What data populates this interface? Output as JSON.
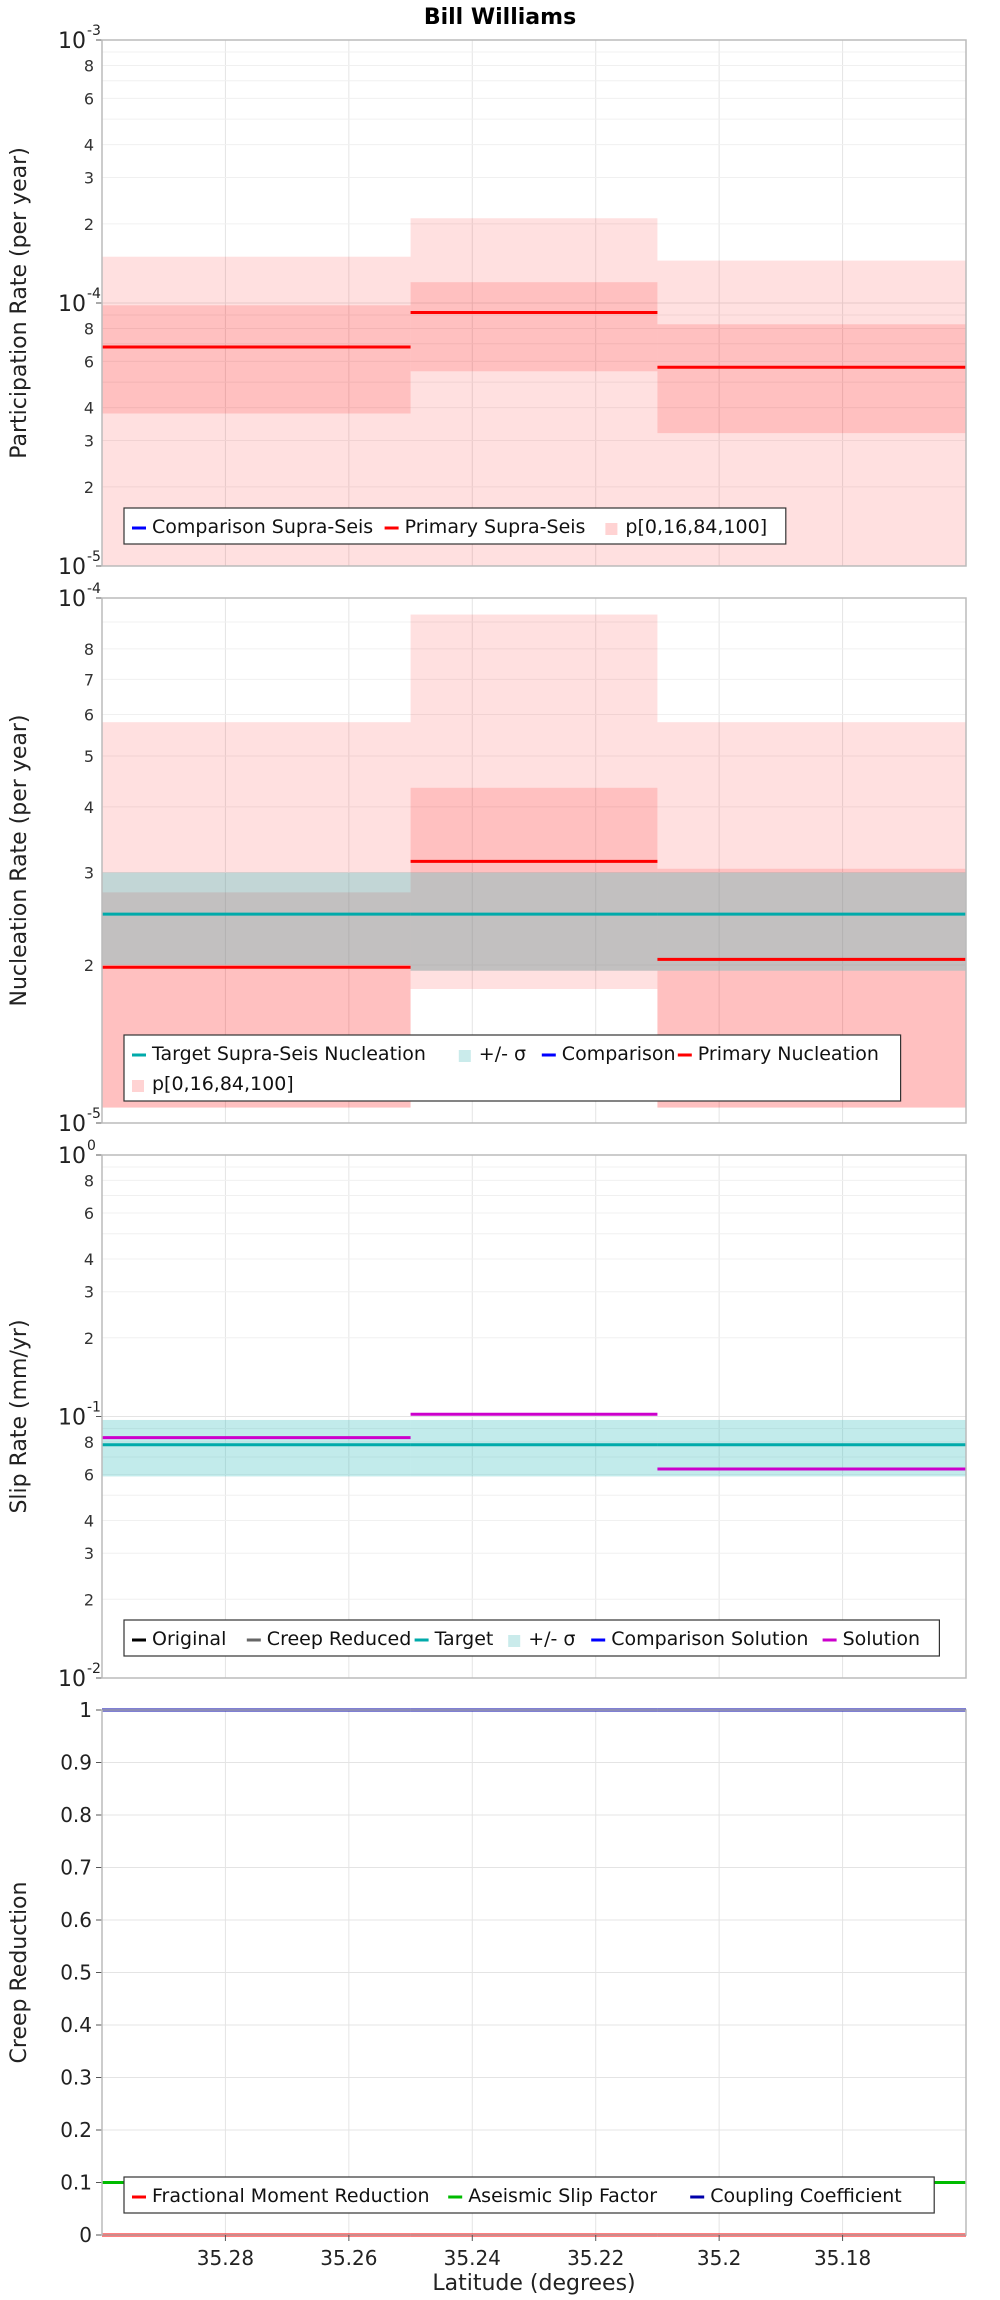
{
  "chart_data": [
    {
      "type": "line",
      "title": "Bill Williams",
      "xlabel": "",
      "ylabel": "Participation Rate (per year)",
      "yscale": "log",
      "ylim": [
        1e-05,
        0.001
      ],
      "xlim": [
        35.3,
        35.16
      ],
      "x_reversed": true,
      "grid": true,
      "x_bins": [
        [
          35.3,
          35.25
        ],
        [
          35.25,
          35.21
        ],
        [
          35.21,
          35.16
        ]
      ],
      "series": [
        {
          "name": "Comparison Supra-Seis",
          "color": "#0000ff",
          "values": []
        },
        {
          "name": "Primary Supra-Seis",
          "color": "#ff0000",
          "values": [
            6.8e-05,
            9.2e-05,
            5.7e-05
          ]
        },
        {
          "name": "p[0,16,84,100]",
          "color": "#ffc8c8",
          "p0": [
            1e-05,
            1e-05,
            1e-05
          ],
          "p16": [
            3.8e-05,
            5.5e-05,
            3.2e-05
          ],
          "p84": [
            9.8e-05,
            0.00012,
            8.3e-05
          ],
          "p100": [
            0.00015,
            0.00021,
            0.000145
          ]
        }
      ],
      "legend": [
        "Comparison Supra-Seis",
        "Primary Supra-Seis",
        "p[0,16,84,100]"
      ],
      "legend_position": "bottom-left"
    },
    {
      "type": "line",
      "title": "",
      "xlabel": "",
      "ylabel": "Nucleation Rate (per year)",
      "yscale": "log",
      "ylim": [
        1e-05,
        0.0001
      ],
      "xlim": [
        35.3,
        35.16
      ],
      "x_reversed": true,
      "grid": true,
      "x_bins": [
        [
          35.3,
          35.25
        ],
        [
          35.25,
          35.21
        ],
        [
          35.21,
          35.16
        ]
      ],
      "series": [
        {
          "name": "Target Supra-Seis Nucleation",
          "color": "#00aaaa",
          "values": [
            2.5e-05,
            2.5e-05,
            2.5e-05
          ]
        },
        {
          "name": "+/- σ",
          "color": "#bde6e6",
          "lower": [
            2e-05,
            1.95e-05,
            1.95e-05
          ],
          "upper": [
            3e-05,
            3e-05,
            3e-05
          ]
        },
        {
          "name": "Comparison",
          "color": "#0000ff",
          "values": []
        },
        {
          "name": "Primary Nucleation",
          "color": "#ff0000",
          "values": [
            1.98e-05,
            3.15e-05,
            2.05e-05
          ]
        },
        {
          "name": "p[0,16,84,100]",
          "color": "#ffc8c8",
          "p0": [
            1.07e-05,
            1.8e-05,
            1.07e-05
          ],
          "p16": [
            1.07e-05,
            1.95e-05,
            1.07e-05
          ],
          "p84": [
            2.75e-05,
            4.35e-05,
            3.05e-05
          ],
          "p100": [
            5.8e-05,
            9.3e-05,
            5.8e-05
          ]
        }
      ],
      "legend": [
        "Target Supra-Seis Nucleation",
        "+/- σ",
        "Comparison",
        "Primary Nucleation",
        "p[0,16,84,100]"
      ],
      "legend_position": "bottom-left"
    },
    {
      "type": "line",
      "title": "",
      "xlabel": "",
      "ylabel": "Slip Rate (mm/yr)",
      "yscale": "log",
      "ylim": [
        0.01,
        1
      ],
      "xlim": [
        35.3,
        35.16
      ],
      "x_reversed": true,
      "grid": true,
      "x_bins": [
        [
          35.3,
          35.25
        ],
        [
          35.25,
          35.21
        ],
        [
          35.21,
          35.16
        ]
      ],
      "series": [
        {
          "name": "Original",
          "color": "#000000",
          "values": []
        },
        {
          "name": "Creep Reduced",
          "color": "#666666",
          "values": []
        },
        {
          "name": "Target",
          "color": "#00aaaa",
          "values": [
            0.078,
            0.078,
            0.078
          ]
        },
        {
          "name": "+/- σ",
          "color": "#bde6e6",
          "lower": [
            0.059,
            0.059,
            0.059
          ],
          "upper": [
            0.097,
            0.097,
            0.097
          ]
        },
        {
          "name": "Comparison Solution",
          "color": "#0000ff",
          "values": []
        },
        {
          "name": "Solution",
          "color": "#cc00cc",
          "values": [
            0.083,
            0.102,
            0.063
          ]
        }
      ],
      "legend": [
        "Original",
        "Creep Reduced",
        "Target",
        "+/- σ",
        "Comparison Solution",
        "Solution"
      ],
      "legend_position": "bottom-left"
    },
    {
      "type": "line",
      "title": "",
      "xlabel": "Latitude (degrees)",
      "ylabel": "Creep Reduction",
      "yscale": "linear",
      "ylim": [
        0,
        1
      ],
      "xlim": [
        35.3,
        35.16
      ],
      "x_reversed": true,
      "grid": true,
      "x_ticks": [
        35.28,
        35.26,
        35.24,
        35.22,
        35.2,
        35.18
      ],
      "series": [
        {
          "name": "Fractional Moment Reduction",
          "color": "#ff0000",
          "values": [
            0,
            0,
            0
          ]
        },
        {
          "name": "Aseismic Slip Factor",
          "color": "#00bb00",
          "values": [
            0.1,
            0.1,
            0.1
          ]
        },
        {
          "name": "Coupling Coefficient",
          "color": "#0000aa",
          "values": [
            1,
            1,
            1
          ]
        }
      ],
      "legend": [
        "Fractional Moment Reduction",
        "Aseismic Slip Factor",
        "Coupling Coefficient"
      ],
      "legend_position": "bottom-left"
    }
  ],
  "tick_labels": {
    "x": [
      "35.28",
      "35.26",
      "35.24",
      "35.22",
      "35.2",
      "35.18"
    ],
    "linear_y": [
      "0",
      "0.1",
      "0.2",
      "0.3",
      "0.4",
      "0.5",
      "0.6",
      "0.7",
      "0.8",
      "0.9",
      "1"
    ],
    "minor_digits": [
      "2",
      "3",
      "4",
      "5",
      "6",
      "7",
      "8"
    ],
    "decade_base": "10",
    "decade_exponents": {
      "panel1": [
        "-5",
        "-4",
        "-3"
      ],
      "panel2": [
        "-5",
        "-4"
      ],
      "panel3": [
        "-2",
        "-1",
        "0"
      ]
    }
  }
}
